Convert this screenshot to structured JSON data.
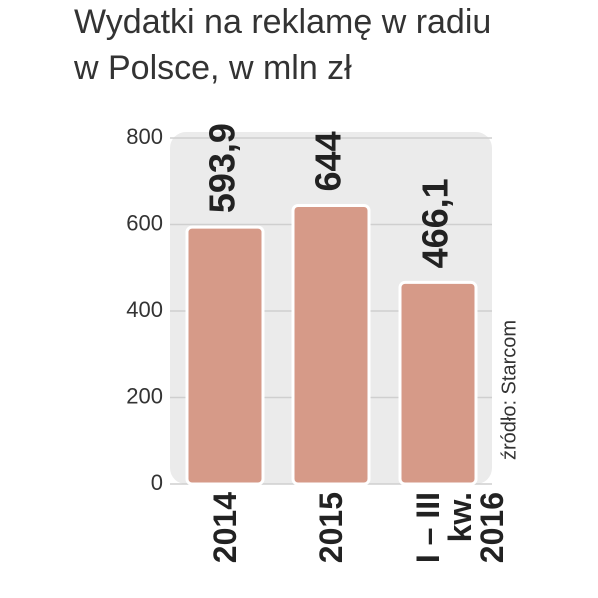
{
  "chart_data": {
    "type": "bar",
    "title": [
      "Wydatki na reklamę w radiu",
      "w Polsce, w mln zł"
    ],
    "categories": [
      "2014",
      "2015",
      "I – III kw. 2016"
    ],
    "values": [
      593.9,
      644,
      466.1
    ],
    "value_labels": [
      "593,9",
      "644",
      "466,1"
    ],
    "color": "#d69a88",
    "ylim": [
      0,
      800
    ],
    "yticks": [
      0,
      200,
      400,
      600,
      800
    ],
    "grid": true,
    "source": "źródło: Starcom"
  }
}
